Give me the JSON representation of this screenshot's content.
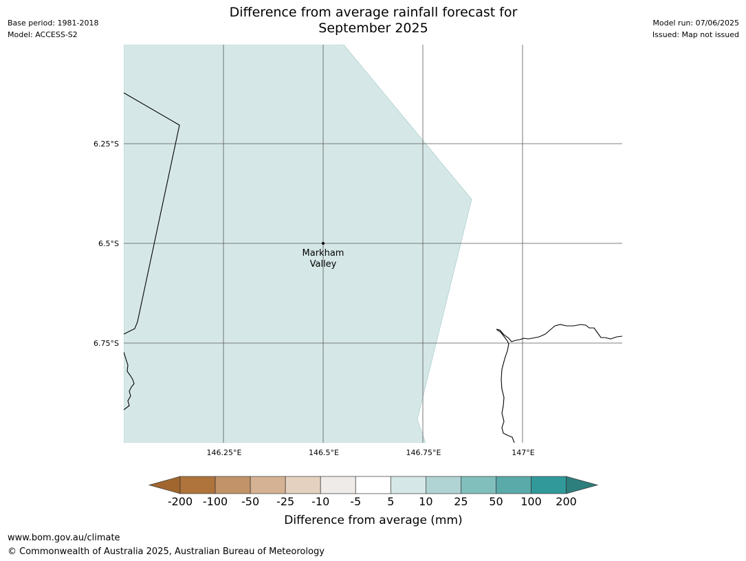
{
  "header": {
    "title_line1": "Difference from average rainfall forecast for",
    "title_line2": "September 2025",
    "base_period": "Base period: 1981-2018",
    "model": "Model: ACCESS-S2",
    "model_run": "Model run: 07/06/2025",
    "issued": "Issued: Map not issued"
  },
  "map": {
    "lat_labels": [
      "6.25°S",
      "6.5°S",
      "6.75°S"
    ],
    "lon_labels": [
      "146.25°E",
      "146.5°E",
      "146.75°E",
      "147°E"
    ],
    "place": {
      "name_line1": "Markham",
      "name_line2": "Valley"
    },
    "forecast_category": "5 to 10",
    "forecast_fill": "#d5e8e7",
    "land_color": "#ffffff"
  },
  "colorbar": {
    "title": "Difference from average (mm)",
    "tick_labels": [
      "-200",
      "-100",
      "-50",
      "-25",
      "-10",
      "-5",
      "5",
      "10",
      "25",
      "50",
      "100",
      "200"
    ],
    "colors": [
      "#a0662e",
      "#ae743c",
      "#c29368",
      "#d4b293",
      "#e5d1bf",
      "#efebe8",
      "#ffffff",
      "#d5e8e7",
      "#b0d4d3",
      "#81bfbc",
      "#5aaaa9",
      "#32999a",
      "#2d7f7d"
    ]
  },
  "footer": {
    "url": "www.bom.gov.au/climate",
    "copyright": "© Commonwealth of Australia 2025, Australian Bureau of Meteorology"
  }
}
